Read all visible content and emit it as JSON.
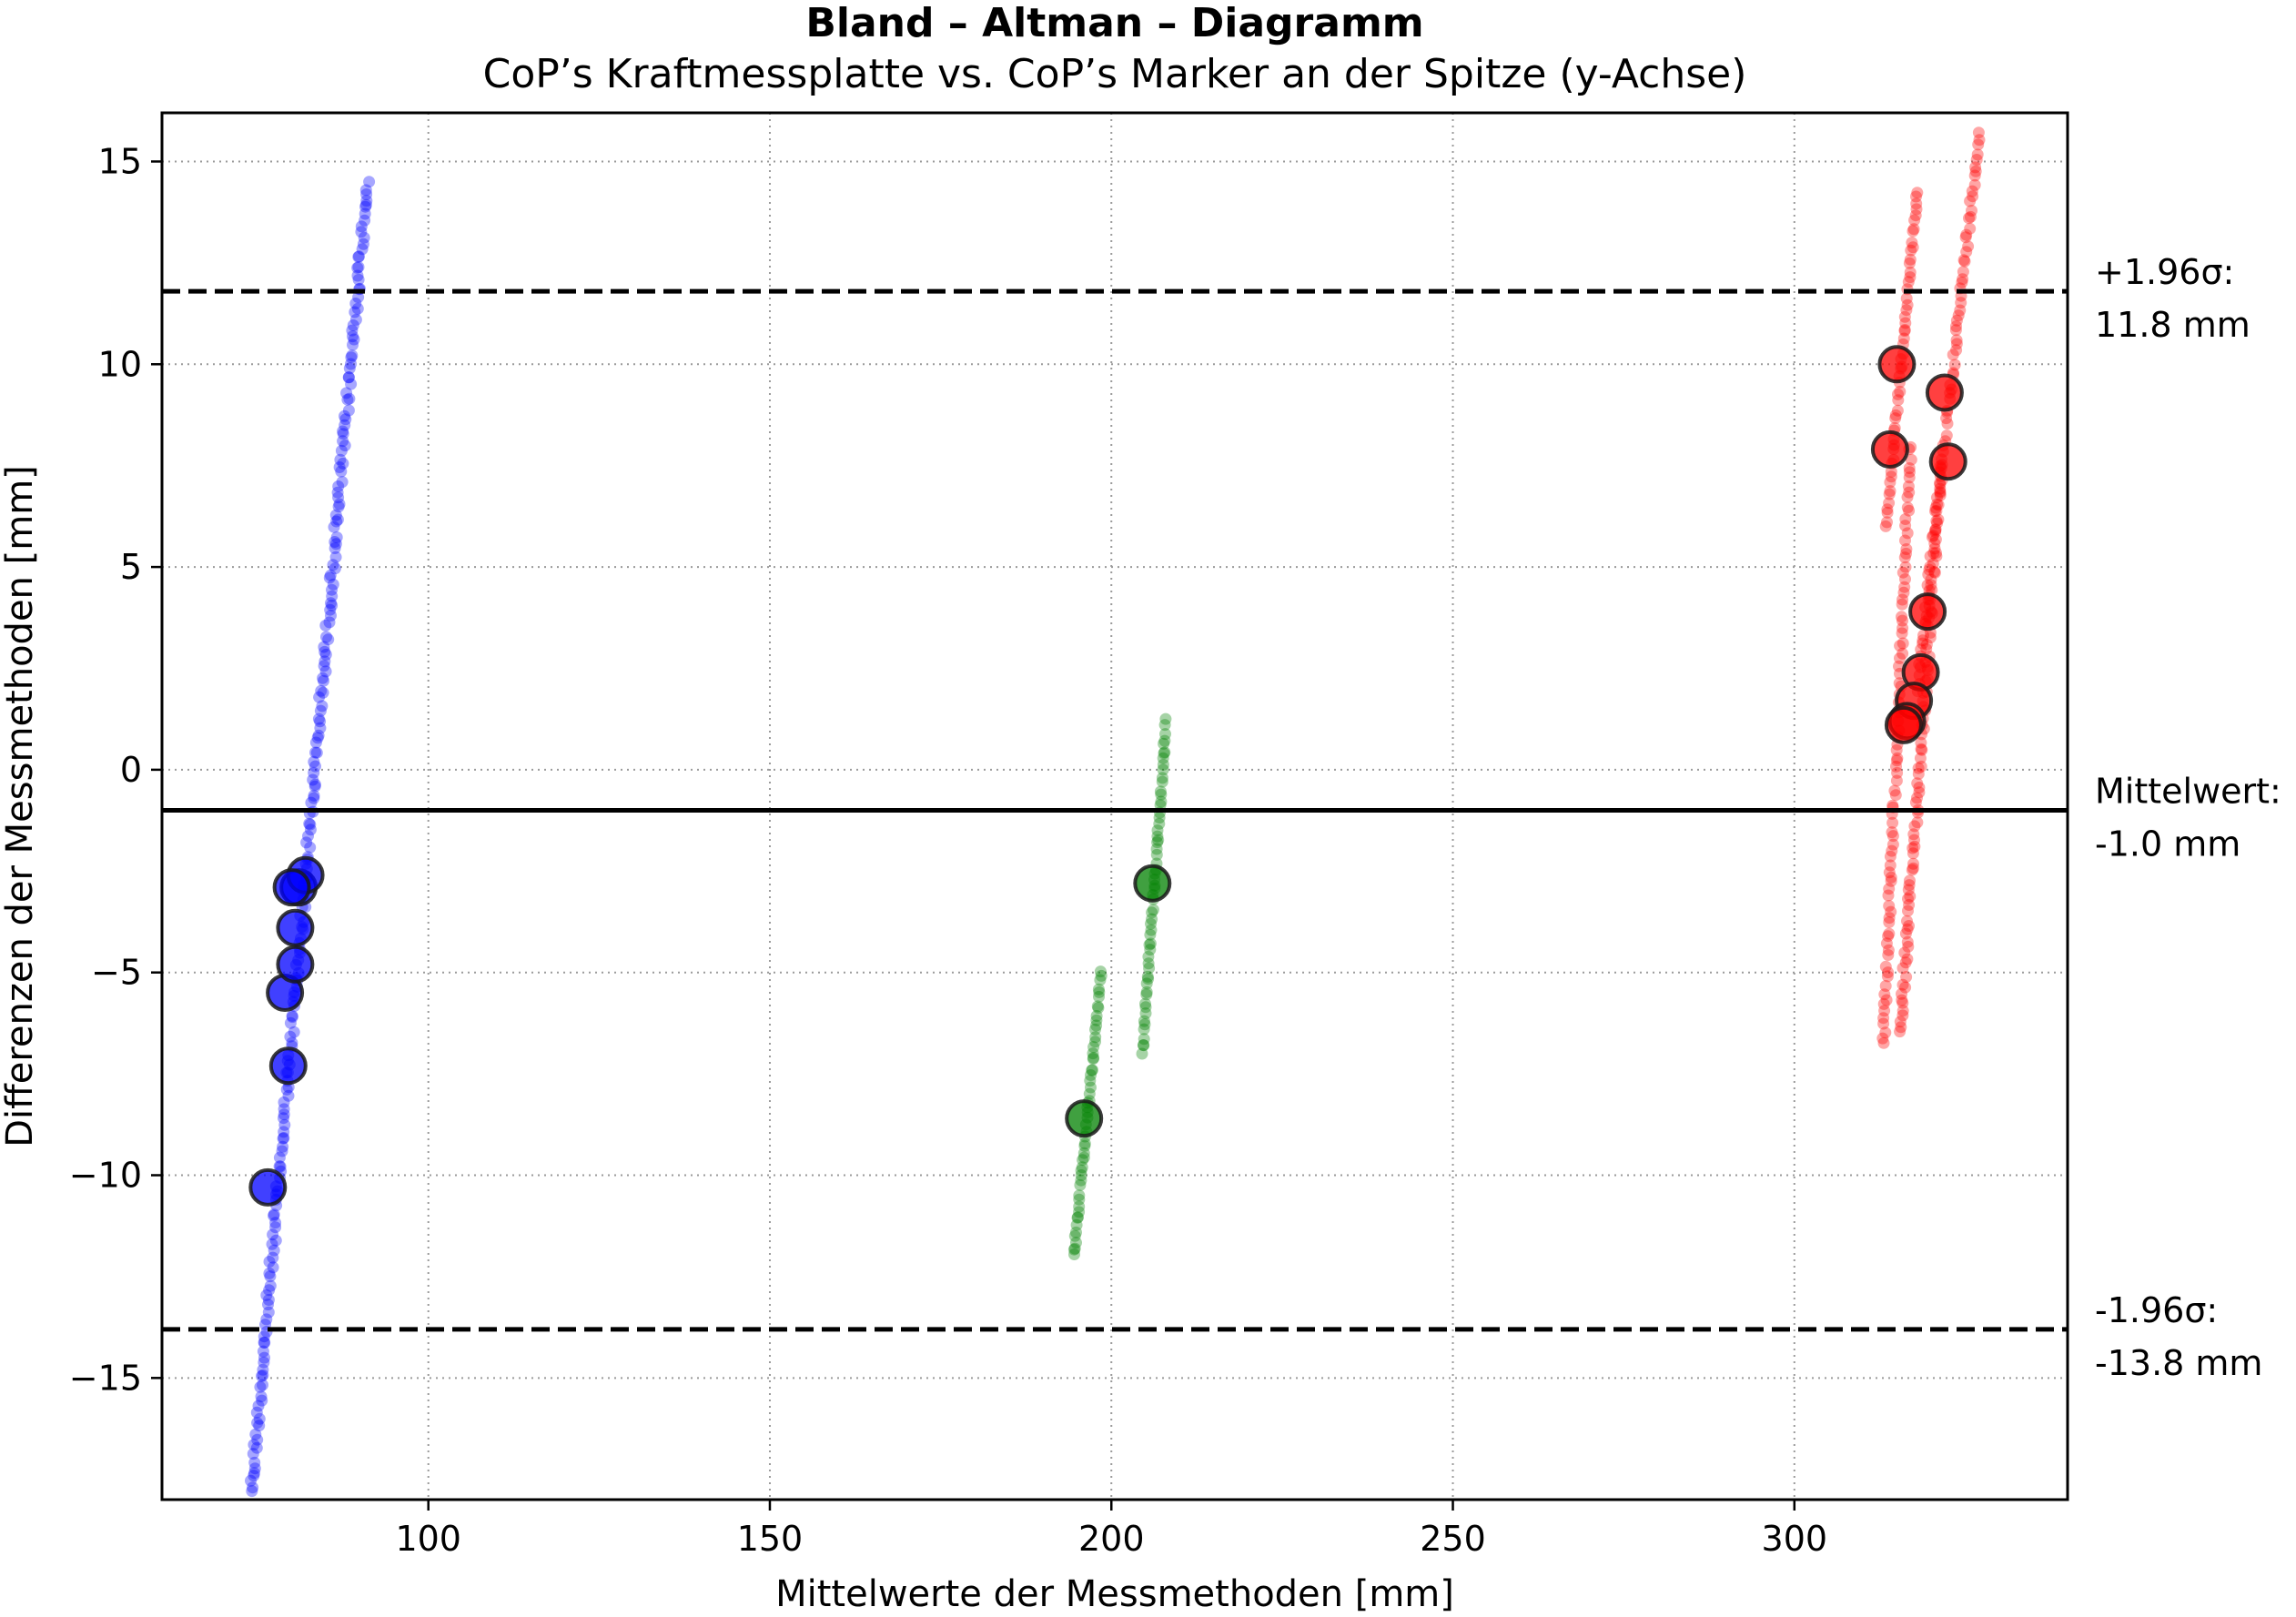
{
  "chart_data": {
    "type": "scatter",
    "title": "Bland – Altman – Diagramm",
    "subtitle": "CoP’s Kraftmessplatte vs. CoP’s Marker an der Spitze (y-Achse)",
    "xlabel": "Mittelwerte der Messmethoden [mm]",
    "ylabel": "Differenzen der Messmethoden [mm]",
    "xlim": [
      61,
      340
    ],
    "ylim": [
      -18,
      16.2
    ],
    "xticks": [
      100,
      150,
      200,
      250,
      300
    ],
    "yticks": [
      15,
      10,
      5,
      0,
      -5,
      -10,
      -15
    ],
    "xtick_labels": [
      "100",
      "150",
      "200",
      "250",
      "300"
    ],
    "ytick_labels": [
      "15",
      "10",
      "5",
      "0",
      "−5",
      "−10",
      "−15"
    ],
    "grid": true,
    "colors": {
      "blue": "#0000ff",
      "green": "#008000",
      "red": "#ff0000",
      "reference_lines": "#000000"
    },
    "reference_lines": [
      {
        "y": 11.8,
        "style": "dashed",
        "label_line1": "+1.96σ:",
        "label_line2": "11.8 mm"
      },
      {
        "y": -1.0,
        "style": "solid",
        "label_line1": "Mittelwert:",
        "label_line2": "-1.0 mm"
      },
      {
        "y": -13.8,
        "style": "dashed",
        "label_line1": "-1.96σ:",
        "label_line2": "-13.8 mm"
      }
    ],
    "trails": [
      {
        "color": "blue",
        "x0": 74.0,
        "y0": -18.0,
        "x1": 91.0,
        "y1": 14.5,
        "n": 240,
        "jitter": 0.7
      },
      {
        "color": "green",
        "x0": 194.5,
        "y0": -12.0,
        "x1": 198.5,
        "y1": -5.0,
        "n": 55,
        "jitter": 0.25
      },
      {
        "color": "green",
        "x0": 204.5,
        "y0": -7.0,
        "x1": 208.0,
        "y1": 1.2,
        "n": 60,
        "jitter": 0.25
      },
      {
        "color": "red",
        "x0": 313.5,
        "y0": 6.0,
        "x1": 318.0,
        "y1": 14.3,
        "n": 55,
        "jitter": 0.3
      },
      {
        "color": "red",
        "x0": 313.0,
        "y0": -6.8,
        "x1": 317.0,
        "y1": 8.0,
        "n": 90,
        "jitter": 0.5
      },
      {
        "color": "red",
        "x0": 315.5,
        "y0": -6.5,
        "x1": 321.5,
        "y1": 7.5,
        "n": 100,
        "jitter": 0.6
      },
      {
        "color": "red",
        "x0": 318.0,
        "y0": 2.0,
        "x1": 327.0,
        "y1": 15.7,
        "n": 90,
        "jitter": 0.5
      }
    ],
    "large_points": [
      {
        "color": "blue",
        "x": 76.5,
        "y": -10.3
      },
      {
        "color": "blue",
        "x": 79.5,
        "y": -7.3
      },
      {
        "color": "blue",
        "x": 79.0,
        "y": -5.5
      },
      {
        "color": "blue",
        "x": 80.5,
        "y": -4.8
      },
      {
        "color": "blue",
        "x": 80.5,
        "y": -3.9
      },
      {
        "color": "blue",
        "x": 81.0,
        "y": -2.9
      },
      {
        "color": "blue",
        "x": 82.0,
        "y": -2.6
      },
      {
        "color": "blue",
        "x": 80.0,
        "y": -2.9
      },
      {
        "color": "green",
        "x": 196.0,
        "y": -8.6
      },
      {
        "color": "green",
        "x": 206.0,
        "y": -2.8
      },
      {
        "color": "red",
        "x": 315.0,
        "y": 10.0
      },
      {
        "color": "red",
        "x": 314.0,
        "y": 7.9
      },
      {
        "color": "red",
        "x": 322.0,
        "y": 9.3
      },
      {
        "color": "red",
        "x": 322.5,
        "y": 7.6
      },
      {
        "color": "red",
        "x": 319.5,
        "y": 3.9
      },
      {
        "color": "red",
        "x": 318.5,
        "y": 2.4
      },
      {
        "color": "red",
        "x": 317.5,
        "y": 1.7
      },
      {
        "color": "red",
        "x": 316.5,
        "y": 1.2
      },
      {
        "color": "red",
        "x": 316.0,
        "y": 1.1
      }
    ]
  }
}
